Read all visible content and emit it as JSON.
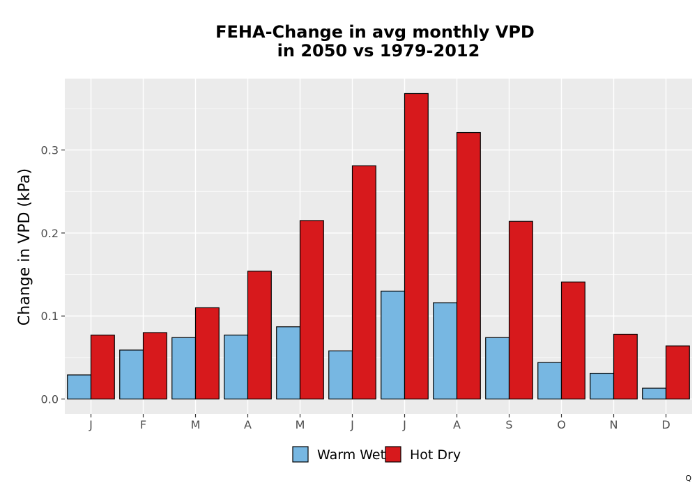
{
  "chart_data": {
    "type": "bar",
    "title": "FEHA-Change in avg monthly VPD",
    "subtitle": "in 2050 vs 1979-2012",
    "xlabel": "",
    "ylabel": "Change in VPD (kPa)",
    "categories": [
      "J",
      "F",
      "M",
      "A",
      "M",
      "J",
      "J",
      "A",
      "S",
      "O",
      "N",
      "D"
    ],
    "series": [
      {
        "name": "Warm Wet",
        "color": "#77B7E2",
        "values": [
          0.029,
          0.059,
          0.074,
          0.077,
          0.087,
          0.058,
          0.13,
          0.116,
          0.074,
          0.044,
          0.031,
          0.013
        ]
      },
      {
        "name": "Hot Dry",
        "color": "#D7191C",
        "values": [
          0.077,
          0.08,
          0.11,
          0.154,
          0.215,
          0.281,
          0.368,
          0.321,
          0.214,
          0.141,
          0.078,
          0.064
        ]
      }
    ],
    "yticks": [
      0.0,
      0.1,
      0.2,
      0.3
    ],
    "ytick_labels": [
      "0.0",
      "0.1",
      "0.2",
      "0.3"
    ],
    "ylim": [
      -0.018,
      0.386
    ],
    "grid": true,
    "legend_position": "bottom",
    "panel_background": "#EBEBEB"
  },
  "corner_note": "Q"
}
